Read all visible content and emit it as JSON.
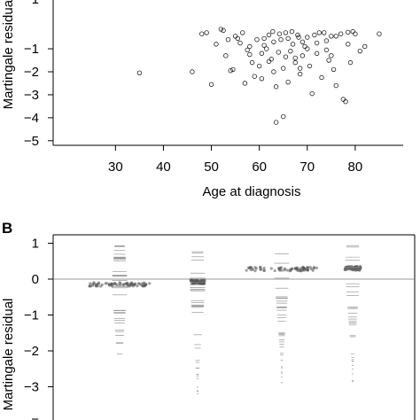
{
  "chart_data": [
    {
      "type": "scatter",
      "panel_label": "",
      "xlabel": "Age at diagnosis",
      "ylabel": "Martingale residual",
      "xlim": [
        17,
        90
      ],
      "ylim": [
        -5.2,
        1.2
      ],
      "xticks": [
        30,
        40,
        50,
        60,
        70,
        80
      ],
      "yticks": [
        -1,
        -2,
        -3,
        -4,
        -5
      ],
      "xtick_labels": [
        "30",
        "40",
        "50",
        "60",
        "70",
        "80"
      ],
      "ytick_labels": [
        "−1",
        "−2",
        "−3",
        "−4",
        "−5"
      ],
      "top_tick_label": "1",
      "grid": false,
      "points": [
        [
          35,
          -2.05
        ],
        [
          46,
          -2.0
        ],
        [
          48,
          -0.35
        ],
        [
          49,
          -0.3
        ],
        [
          50,
          -2.55
        ],
        [
          51,
          -0.8
        ],
        [
          52,
          -0.15
        ],
        [
          53,
          -1.3
        ],
        [
          54,
          -1.95
        ],
        [
          54.5,
          -1.9
        ],
        [
          55,
          -0.45
        ],
        [
          56,
          -0.75
        ],
        [
          57,
          -2.5
        ],
        [
          58,
          -1.25
        ],
        [
          58.5,
          -1.6
        ],
        [
          59,
          -2.2
        ],
        [
          60,
          -1.75
        ],
        [
          60.5,
          -2.3
        ],
        [
          61,
          -0.55
        ],
        [
          61.5,
          -1.0
        ],
        [
          62,
          -0.4
        ],
        [
          62.5,
          -1.45
        ],
        [
          63,
          -2.0
        ],
        [
          63.5,
          -2.65
        ],
        [
          64,
          -1.15
        ],
        [
          64.5,
          -0.6
        ],
        [
          65,
          -1.85
        ],
        [
          65.5,
          -0.3
        ],
        [
          66,
          -2.45
        ],
        [
          66.5,
          -1.1
        ],
        [
          67,
          -0.8
        ],
        [
          67.5,
          -1.6
        ],
        [
          68,
          -0.4
        ],
        [
          68.5,
          -2.1
        ],
        [
          69,
          -1.3
        ],
        [
          69.5,
          -0.9
        ],
        [
          70,
          -0.5
        ],
        [
          70.5,
          -1.75
        ],
        [
          71,
          -2.95
        ],
        [
          72,
          -1.2
        ],
        [
          72.5,
          -0.3
        ],
        [
          73,
          -2.25
        ],
        [
          74,
          -0.65
        ],
        [
          74.5,
          -1.5
        ],
        [
          75,
          -0.45
        ],
        [
          75.5,
          -1.9
        ],
        [
          76,
          -2.6
        ],
        [
          77,
          -0.35
        ],
        [
          77.5,
          -3.2
        ],
        [
          78,
          -3.3
        ],
        [
          78.5,
          -0.8
        ],
        [
          79,
          -1.6
        ],
        [
          80,
          -0.35
        ],
        [
          81,
          -1.1
        ],
        [
          82,
          -0.9
        ],
        [
          85,
          -0.35
        ],
        [
          63.5,
          -4.2
        ],
        [
          65,
          -3.95
        ],
        [
          52.5,
          -0.2
        ],
        [
          56.5,
          -0.3
        ],
        [
          59.5,
          -0.6
        ],
        [
          62.8,
          -0.25
        ],
        [
          64.2,
          -0.35
        ],
        [
          66.8,
          -0.25
        ],
        [
          68.2,
          -0.5
        ],
        [
          71.5,
          -0.4
        ],
        [
          73.5,
          -0.3
        ],
        [
          78.5,
          -0.28
        ],
        [
          79.5,
          -0.25
        ],
        [
          61,
          -0.85
        ],
        [
          63,
          -0.7
        ],
        [
          67.5,
          -1.4
        ],
        [
          70,
          -1.0
        ],
        [
          57.5,
          -1.05
        ],
        [
          55.5,
          -0.55
        ],
        [
          60.5,
          -1.2
        ],
        [
          66,
          -0.55
        ],
        [
          69,
          -0.7
        ],
        [
          74,
          -1.05
        ],
        [
          76,
          -0.45
        ],
        [
          53.5,
          -0.6
        ],
        [
          58,
          -0.9
        ],
        [
          62,
          -1.55
        ],
        [
          65.5,
          -1.35
        ],
        [
          68.5,
          -1.85
        ],
        [
          72,
          -0.75
        ],
        [
          75,
          -1.3
        ]
      ]
    },
    {
      "type": "scatter",
      "panel_label": "B",
      "xlabel": "",
      "ylabel": "Martingale residual",
      "ylim": [
        -3.9,
        1.2
      ],
      "yticks": [
        1,
        0,
        -1,
        -2,
        -3
      ],
      "ytick_labels": [
        "1",
        "0",
        "−1",
        "−2",
        "−3"
      ],
      "bottom_tick_label": "−",
      "reference_line_y": 0,
      "grid": false,
      "groups": [
        {
          "center_value": -0.15
        },
        {
          "center_value": -0.08
        },
        {
          "center_value": 0.28
        },
        {
          "center_value": 0.3
        }
      ]
    }
  ]
}
